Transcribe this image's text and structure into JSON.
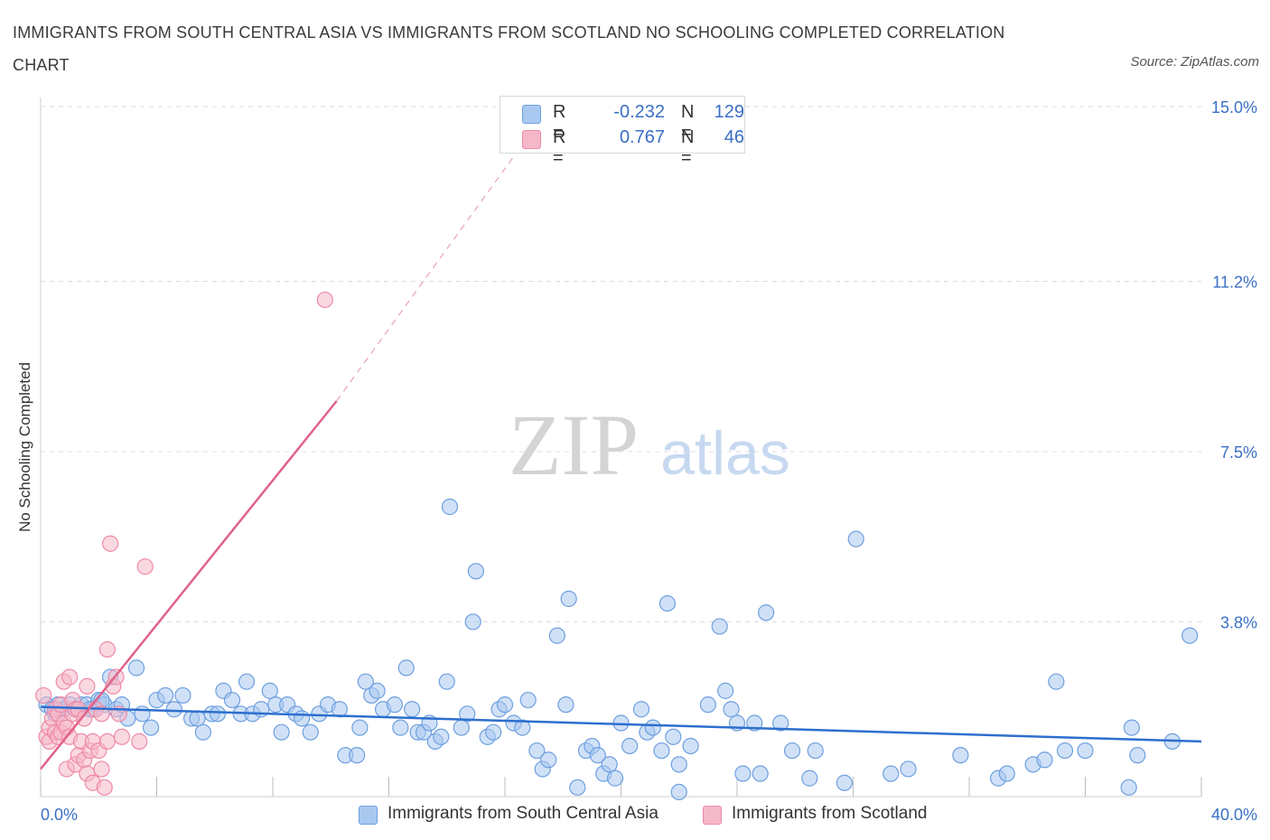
{
  "title": "IMMIGRANTS FROM SOUTH CENTRAL ASIA VS IMMIGRANTS FROM SCOTLAND NO SCHOOLING COMPLETED CORRELATION CHART",
  "source": "Source: ZipAtlas.com",
  "watermark": {
    "zip": "ZIP",
    "atlas": "atlas"
  },
  "legend": {
    "r_label": "R =",
    "n_label": "N =",
    "series1": {
      "r": "-0.232",
      "n": "129"
    },
    "series2": {
      "r": "0.767",
      "n": "46"
    }
  },
  "colors": {
    "blue_fill": "#a9c8f0",
    "blue_stroke": "#6e9fe0",
    "blue_line": "#2d6fce",
    "pink_fill": "#f5b8c9",
    "pink_stroke": "#ee8aa6",
    "pink_line": "#e0628a",
    "tick_label": "#3a6fc4",
    "grid": "#dcdcdc"
  },
  "chart_data": {
    "type": "scatter",
    "title": "IMMIGRANTS FROM SOUTH CENTRAL ASIA VS IMMIGRANTS FROM SCOTLAND NO SCHOOLING COMPLETED CORRELATION CHART",
    "xlabel": "",
    "ylabel": "No Schooling Completed",
    "xlim": [
      0,
      40
    ],
    "ylim": [
      0,
      15
    ],
    "x_tick_labels": [
      "0.0%",
      "40.0%"
    ],
    "y_ticks": [
      3.8,
      7.5,
      11.2,
      15.0
    ],
    "y_tick_labels": [
      "3.8%",
      "7.5%",
      "11.2%",
      "15.0%"
    ],
    "grid": true,
    "legend_position": "top-center",
    "series": [
      {
        "name": "Immigrants from South Central Asia",
        "color": "blue",
        "trend": {
          "x0": 0,
          "y0": 1.95,
          "x1": 40,
          "y1": 1.2
        },
        "points": [
          [
            0.2,
            2.0
          ],
          [
            0.4,
            1.9
          ],
          [
            0.6,
            2.0
          ],
          [
            0.8,
            1.9
          ],
          [
            1.0,
            2.0
          ],
          [
            1.2,
            1.9
          ],
          [
            1.4,
            2.0
          ],
          [
            1.6,
            2.0
          ],
          [
            1.8,
            1.9
          ],
          [
            2.0,
            2.1
          ],
          [
            2.2,
            2.0
          ],
          [
            2.4,
            2.6
          ],
          [
            2.6,
            1.9
          ],
          [
            2.8,
            2.0
          ],
          [
            3.0,
            1.7
          ],
          [
            3.3,
            2.8
          ],
          [
            3.5,
            1.8
          ],
          [
            3.8,
            1.5
          ],
          [
            4.0,
            2.1
          ],
          [
            4.3,
            2.2
          ],
          [
            4.6,
            1.9
          ],
          [
            4.9,
            2.2
          ],
          [
            5.2,
            1.7
          ],
          [
            5.4,
            1.7
          ],
          [
            5.6,
            1.4
          ],
          [
            5.9,
            1.8
          ],
          [
            6.1,
            1.8
          ],
          [
            6.3,
            2.3
          ],
          [
            6.6,
            2.1
          ],
          [
            6.9,
            1.8
          ],
          [
            7.1,
            2.5
          ],
          [
            7.3,
            1.8
          ],
          [
            7.6,
            1.9
          ],
          [
            7.9,
            2.3
          ],
          [
            8.1,
            2.0
          ],
          [
            8.3,
            1.4
          ],
          [
            8.5,
            2.0
          ],
          [
            8.8,
            1.8
          ],
          [
            9.0,
            1.7
          ],
          [
            9.3,
            1.4
          ],
          [
            9.6,
            1.8
          ],
          [
            9.9,
            2.0
          ],
          [
            10.3,
            1.9
          ],
          [
            10.5,
            0.9
          ],
          [
            10.9,
            0.9
          ],
          [
            11.0,
            1.5
          ],
          [
            11.2,
            2.5
          ],
          [
            11.4,
            2.2
          ],
          [
            11.6,
            2.3
          ],
          [
            11.8,
            1.9
          ],
          [
            12.2,
            2.0
          ],
          [
            12.4,
            1.5
          ],
          [
            12.6,
            2.8
          ],
          [
            12.8,
            1.9
          ],
          [
            13.0,
            1.4
          ],
          [
            13.2,
            1.4
          ],
          [
            13.4,
            1.6
          ],
          [
            13.6,
            1.2
          ],
          [
            13.8,
            1.3
          ],
          [
            14.0,
            2.5
          ],
          [
            14.1,
            6.3
          ],
          [
            14.5,
            1.5
          ],
          [
            14.7,
            1.8
          ],
          [
            14.9,
            3.8
          ],
          [
            15.0,
            4.9
          ],
          [
            15.4,
            1.3
          ],
          [
            15.6,
            1.4
          ],
          [
            15.8,
            1.9
          ],
          [
            16.0,
            2.0
          ],
          [
            16.3,
            1.6
          ],
          [
            16.6,
            1.5
          ],
          [
            16.8,
            2.1
          ],
          [
            17.1,
            1.0
          ],
          [
            17.3,
            0.6
          ],
          [
            17.5,
            0.8
          ],
          [
            17.8,
            3.5
          ],
          [
            18.1,
            2.0
          ],
          [
            18.2,
            4.3
          ],
          [
            18.5,
            0.2
          ],
          [
            18.8,
            1.0
          ],
          [
            19.0,
            1.1
          ],
          [
            19.2,
            0.9
          ],
          [
            19.4,
            0.5
          ],
          [
            19.6,
            0.7
          ],
          [
            19.8,
            0.4
          ],
          [
            20.0,
            1.6
          ],
          [
            20.3,
            1.1
          ],
          [
            20.7,
            1.9
          ],
          [
            20.9,
            1.4
          ],
          [
            21.1,
            1.5
          ],
          [
            21.4,
            1.0
          ],
          [
            21.6,
            4.2
          ],
          [
            21.8,
            1.3
          ],
          [
            22.0,
            0.7
          ],
          [
            22.4,
            1.1
          ],
          [
            22.0,
            0.1
          ],
          [
            23.0,
            2.0
          ],
          [
            23.4,
            3.7
          ],
          [
            23.6,
            2.3
          ],
          [
            23.8,
            1.9
          ],
          [
            24.0,
            1.6
          ],
          [
            24.2,
            0.5
          ],
          [
            24.8,
            0.5
          ],
          [
            25.0,
            4.0
          ],
          [
            24.6,
            1.6
          ],
          [
            25.5,
            1.6
          ],
          [
            25.9,
            1.0
          ],
          [
            26.5,
            0.4
          ],
          [
            26.7,
            1.0
          ],
          [
            27.7,
            0.3
          ],
          [
            28.1,
            5.6
          ],
          [
            29.3,
            0.5
          ],
          [
            29.9,
            0.6
          ],
          [
            31.7,
            0.9
          ],
          [
            33.0,
            0.4
          ],
          [
            33.3,
            0.5
          ],
          [
            34.2,
            0.7
          ],
          [
            34.6,
            0.8
          ],
          [
            35.0,
            2.5
          ],
          [
            35.3,
            1.0
          ],
          [
            36.0,
            1.0
          ],
          [
            37.5,
            0.2
          ],
          [
            37.6,
            1.5
          ],
          [
            37.8,
            0.9
          ],
          [
            39.0,
            1.2
          ],
          [
            39.6,
            3.5
          ],
          [
            0.5,
            1.8
          ],
          [
            1.7,
            1.9
          ],
          [
            2.1,
            2.1
          ]
        ]
      },
      {
        "name": "Immigrants from Scotland",
        "color": "pink",
        "trend": {
          "x0": 0,
          "y0": 0.6,
          "x1": 10.2,
          "y1": 8.6
        },
        "trend_extension": {
          "x0": 10.2,
          "y0": 8.6,
          "x1": 16.4,
          "y1": 14.0
        },
        "points": [
          [
            0.1,
            2.2
          ],
          [
            0.2,
            1.3
          ],
          [
            0.3,
            1.2
          ],
          [
            0.3,
            1.5
          ],
          [
            0.4,
            1.7
          ],
          [
            0.5,
            1.4
          ],
          [
            0.5,
            1.9
          ],
          [
            0.6,
            1.3
          ],
          [
            0.6,
            1.8
          ],
          [
            0.7,
            1.4
          ],
          [
            0.7,
            2.0
          ],
          [
            0.8,
            1.6
          ],
          [
            0.8,
            2.5
          ],
          [
            0.9,
            1.5
          ],
          [
            0.9,
            0.6
          ],
          [
            1.0,
            2.6
          ],
          [
            1.0,
            1.3
          ],
          [
            1.1,
            1.8
          ],
          [
            1.1,
            2.1
          ],
          [
            1.2,
            0.7
          ],
          [
            1.2,
            1.9
          ],
          [
            1.3,
            0.9
          ],
          [
            1.3,
            1.9
          ],
          [
            1.4,
            1.2
          ],
          [
            1.5,
            0.8
          ],
          [
            1.5,
            1.7
          ],
          [
            1.6,
            0.5
          ],
          [
            1.6,
            2.4
          ],
          [
            1.7,
            1.0
          ],
          [
            1.8,
            0.3
          ],
          [
            1.8,
            1.2
          ],
          [
            1.9,
            1.9
          ],
          [
            2.0,
            1.0
          ],
          [
            2.1,
            0.6
          ],
          [
            2.1,
            1.8
          ],
          [
            2.2,
            0.2
          ],
          [
            2.3,
            1.2
          ],
          [
            2.3,
            3.2
          ],
          [
            2.4,
            5.5
          ],
          [
            2.5,
            2.4
          ],
          [
            2.6,
            2.6
          ],
          [
            2.7,
            1.8
          ],
          [
            2.8,
            1.3
          ],
          [
            3.4,
            1.2
          ],
          [
            3.6,
            5.0
          ],
          [
            9.8,
            10.8
          ]
        ]
      }
    ]
  }
}
